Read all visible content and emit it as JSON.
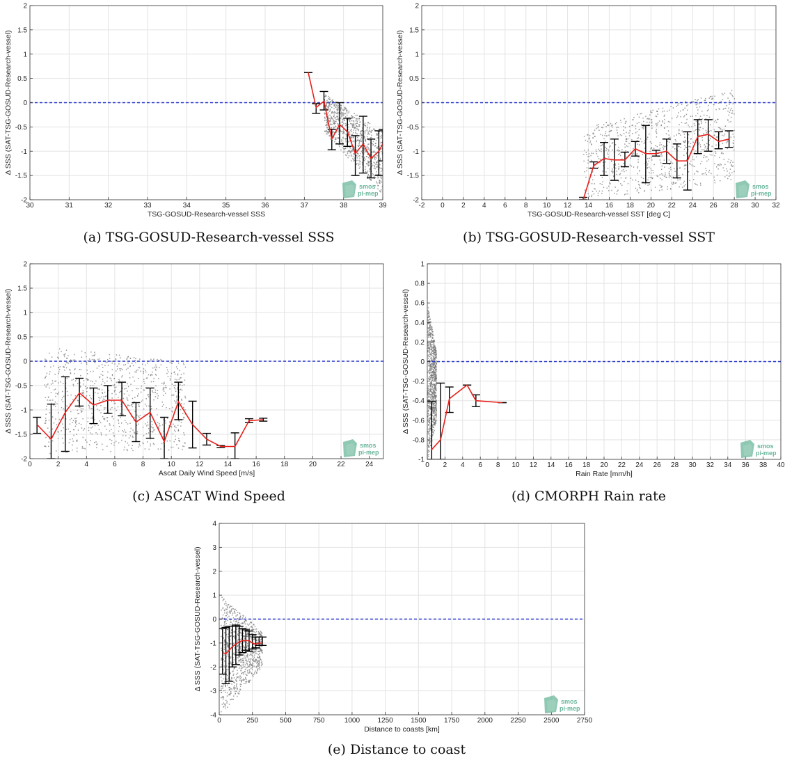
{
  "figure": {
    "logo": {
      "line1": "smos",
      "line2": "pi-mep",
      "color": "#6ab69a"
    },
    "colors": {
      "mean_line": "#e8201a",
      "zero_line": "#2233cc",
      "scatter": "#777777",
      "error_bar": "#000000",
      "grid": "#e3e3e3"
    }
  },
  "chart_data": [
    {
      "id": "a",
      "type": "scatter",
      "caption": "(a) TSG-GOSUD-Research-vessel SSS",
      "xlabel": "TSG-GOSUD-Research-vessel SSS",
      "ylabel": "Δ SSS (SAT-TSG-GOSUD-Research-vessel)",
      "xlim": [
        30,
        39
      ],
      "ylim": [
        -2,
        2
      ],
      "xticks": [
        30,
        31,
        32,
        33,
        34,
        35,
        36,
        37,
        38,
        39
      ],
      "yticks": [
        -2,
        -1.5,
        -1,
        -0.5,
        0,
        0.5,
        1,
        1.5,
        2
      ],
      "grid": true,
      "zero_line": 0,
      "scatter_region": {
        "x": [
          37.5,
          39
        ],
        "y_top_at_x0": 0.2,
        "y_top_at_x1": -0.6,
        "y_bot_at_x0": -0.6,
        "y_bot_at_x1": -1.9
      },
      "mean": {
        "x": [
          37.1,
          37.3,
          37.5,
          37.7,
          37.9,
          38.1,
          38.3,
          38.5,
          38.7,
          38.9,
          39.0
        ],
        "y": [
          0.62,
          -0.1,
          0.03,
          -0.75,
          -0.45,
          -0.6,
          -1.05,
          -0.85,
          -1.15,
          -1.0,
          -0.85
        ],
        "low": [
          0.62,
          -0.22,
          -0.15,
          -0.97,
          -0.85,
          -0.9,
          -1.5,
          -1.45,
          -1.55,
          -1.5,
          -1.2
        ],
        "high": [
          0.62,
          -0.02,
          0.23,
          -0.55,
          0.0,
          -0.32,
          -0.68,
          -0.28,
          -0.75,
          -0.58,
          -0.55
        ]
      }
    },
    {
      "id": "b",
      "type": "scatter",
      "caption": "(b) TSG-GOSUD-Research-vessel SST",
      "xlabel": "TSG-GOSUD-Research-vessel SST [deg C]",
      "ylabel": "Δ SSS (SAT-TSG-GOSUD-Research-vessel)",
      "xlim": [
        -2,
        32
      ],
      "ylim": [
        -2,
        2
      ],
      "xticks": [
        -2,
        0,
        2,
        4,
        6,
        8,
        10,
        12,
        14,
        16,
        18,
        20,
        22,
        24,
        26,
        28,
        30,
        32
      ],
      "yticks": [
        -2,
        -1.5,
        -1,
        -0.5,
        0,
        0.5,
        1,
        1.5,
        2
      ],
      "grid": true,
      "zero_line": 0,
      "scatter_region": {
        "x": [
          13.5,
          28
        ],
        "y_top_at_x0": -0.5,
        "y_top_at_x1": 0.3,
        "y_bot_at_x0": -2.0,
        "y_bot_at_x1": -1.6
      },
      "mean": {
        "x": [
          13.5,
          14.5,
          15.5,
          16.5,
          17.5,
          18.5,
          19.5,
          20.5,
          21.5,
          22.5,
          23.5,
          24.5,
          25.5,
          26.5,
          27.5
        ],
        "y": [
          -2.0,
          -1.3,
          -1.15,
          -1.18,
          -1.18,
          -0.95,
          -1.05,
          -1.05,
          -1.0,
          -1.2,
          -1.2,
          -0.7,
          -0.65,
          -0.8,
          -0.75
        ],
        "low": [
          -2.0,
          -1.35,
          -1.5,
          -1.6,
          -1.32,
          -1.1,
          -1.65,
          -1.1,
          -1.25,
          -1.55,
          -1.8,
          -1.05,
          -1.0,
          -0.95,
          -0.92
        ],
        "high": [
          -1.95,
          -1.22,
          -0.82,
          -0.75,
          -1.02,
          -0.8,
          -0.47,
          -0.98,
          -0.75,
          -0.85,
          -0.6,
          -0.35,
          -0.35,
          -0.6,
          -0.58
        ]
      }
    },
    {
      "id": "c",
      "type": "scatter",
      "caption": "(c) ASCAT Wind Speed",
      "xlabel": "Ascat Daily Wind Speed [m/s]",
      "ylabel": "Δ SSS (SAT-TSG-GOSUD-Research-vessel)",
      "xlim": [
        0,
        25
      ],
      "ylim": [
        -2,
        2
      ],
      "xticks": [
        0,
        2,
        4,
        6,
        8,
        10,
        12,
        14,
        16,
        18,
        20,
        22,
        24
      ],
      "yticks": [
        -2,
        -1.5,
        -1,
        -0.5,
        0,
        0.5,
        1,
        1.5,
        2
      ],
      "grid": true,
      "zero_line": 0,
      "scatter_region": {
        "x": [
          1,
          11
        ],
        "y_top_at_x0": 0.3,
        "y_top_at_x1": 0.0,
        "y_bot_at_x0": -1.9,
        "y_bot_at_x1": -1.8
      },
      "mean": {
        "x": [
          0.5,
          1.5,
          2.5,
          3.5,
          4.5,
          5.5,
          6.5,
          7.5,
          8.5,
          9.5,
          10.5,
          11.5,
          12.5,
          13.5,
          14.5,
          15.5,
          16.5
        ],
        "y": [
          -1.3,
          -1.6,
          -1.05,
          -0.65,
          -0.9,
          -0.8,
          -0.8,
          -1.25,
          -1.05,
          -1.65,
          -0.83,
          -1.3,
          -1.6,
          -1.75,
          -1.75,
          -1.22,
          -1.2
        ],
        "low": [
          -1.48,
          -2.0,
          -1.85,
          -0.92,
          -1.28,
          -1.07,
          -1.12,
          -1.65,
          -1.58,
          -2.0,
          -1.2,
          -1.78,
          -1.72,
          -1.77,
          -2.0,
          -1.26,
          -1.23
        ],
        "high": [
          -1.15,
          -0.88,
          -0.32,
          -0.35,
          -0.55,
          -0.5,
          -0.43,
          -0.85,
          -0.55,
          -1.15,
          -0.43,
          -0.82,
          -1.48,
          -1.73,
          -1.47,
          -1.18,
          -1.17
        ]
      }
    },
    {
      "id": "d",
      "type": "scatter",
      "caption": "(d) CMORPH Rain rate",
      "xlabel": "Rain Rate [mm/h]",
      "ylabel": "Δ SSS (SAT-TSG-GOSUD-Research-vessel)",
      "xlim": [
        0,
        40
      ],
      "ylim": [
        -1,
        1
      ],
      "xticks": [
        0,
        2,
        4,
        6,
        8,
        10,
        12,
        14,
        16,
        18,
        20,
        22,
        24,
        26,
        28,
        30,
        32,
        34,
        36,
        38,
        40
      ],
      "yticks": [
        -1,
        -0.8,
        -0.6,
        -0.4,
        -0.2,
        0,
        0.2,
        0.4,
        0.6,
        0.8,
        1
      ],
      "grid": true,
      "zero_line": 0,
      "scatter_region": {
        "x": [
          0,
          1
        ],
        "y_top_at_x0": 0.6,
        "y_top_at_x1": 0.1,
        "y_bot_at_x0": -1.0,
        "y_bot_at_x1": -0.6
      },
      "mean": {
        "x": [
          0.5,
          1.5,
          2.5,
          4.5,
          5.5,
          8.5
        ],
        "y": [
          -0.9,
          -0.8,
          -0.38,
          -0.24,
          -0.4,
          -0.42
        ],
        "low": [
          -1.0,
          -1.0,
          -0.52,
          -0.24,
          -0.46,
          -0.42
        ],
        "high": [
          -0.41,
          -0.22,
          -0.26,
          -0.24,
          -0.34,
          -0.42
        ]
      }
    },
    {
      "id": "e",
      "type": "scatter",
      "caption": "(e) Distance to coast",
      "xlabel": "Distance to coasts [km]",
      "ylabel": "Δ SSS (SAT-TSG-GOSUD-Research-vessel)",
      "xlim": [
        0,
        2750
      ],
      "ylim": [
        -4,
        4
      ],
      "xticks": [
        0,
        250,
        500,
        750,
        1000,
        1250,
        1500,
        1750,
        2000,
        2250,
        2500,
        2750
      ],
      "yticks": [
        -4,
        -3,
        -2,
        -1,
        0,
        1,
        2,
        3,
        4
      ],
      "grid": true,
      "zero_line": 0,
      "scatter_region": {
        "x": [
          10,
          320
        ],
        "y_top_at_x0": 1.0,
        "y_top_at_x1": -0.5,
        "y_bot_at_x0": -4.0,
        "y_bot_at_x1": -2.0
      },
      "mean": {
        "x": [
          25,
          50,
          75,
          100,
          125,
          150,
          175,
          200,
          225,
          250,
          275,
          300,
          325
        ],
        "y": [
          -1.4,
          -1.45,
          -1.3,
          -1.15,
          -1.05,
          -0.95,
          -0.9,
          -0.9,
          -0.9,
          -1.0,
          -1.05,
          -1.0,
          -1.0
        ],
        "low": [
          -2.3,
          -2.7,
          -2.6,
          -2.0,
          -1.9,
          -1.5,
          -1.4,
          -1.3,
          -1.35,
          -1.25,
          -1.2,
          -1.1,
          -1.1
        ],
        "high": [
          -0.4,
          -0.35,
          -0.3,
          -0.3,
          -0.25,
          -0.3,
          -0.4,
          -0.45,
          -0.5,
          -0.65,
          -0.75,
          -0.75,
          -0.75
        ]
      }
    }
  ]
}
